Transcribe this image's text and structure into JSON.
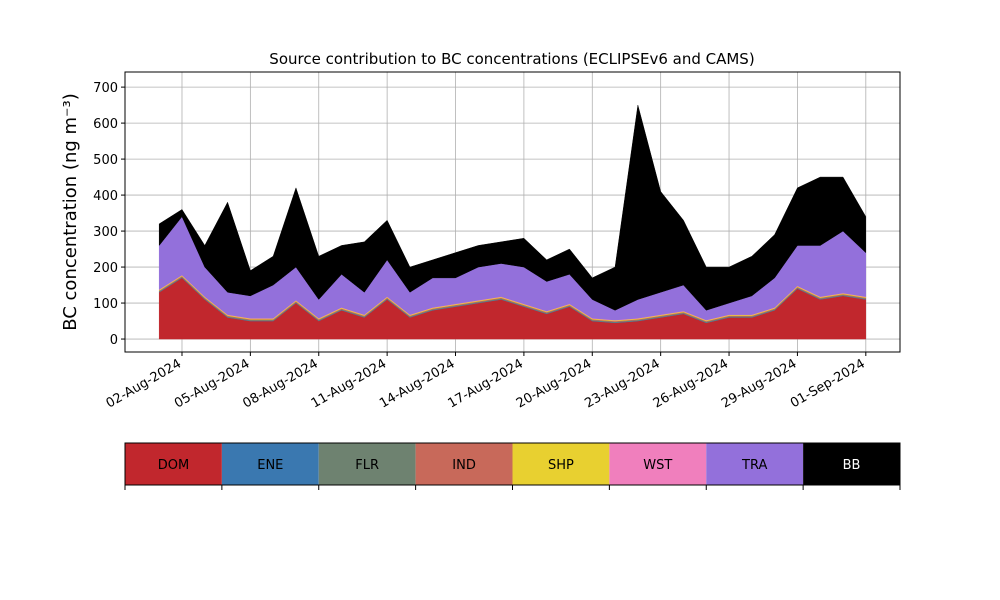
{
  "chart_data": {
    "type": "stacked_area",
    "title": "Source contribution to BC concentrations (ECLIPSEv6 and CAMS)",
    "y_label": "BC concentration (ng m⁻³)",
    "x": [
      "2024-08-01",
      "2024-08-02",
      "2024-08-03",
      "2024-08-04",
      "2024-08-05",
      "2024-08-06",
      "2024-08-07",
      "2024-08-08",
      "2024-08-09",
      "2024-08-10",
      "2024-08-11",
      "2024-08-12",
      "2024-08-13",
      "2024-08-14",
      "2024-08-15",
      "2024-08-16",
      "2024-08-17",
      "2024-08-18",
      "2024-08-19",
      "2024-08-20",
      "2024-08-21",
      "2024-08-22",
      "2024-08-23",
      "2024-08-24",
      "2024-08-25",
      "2024-08-26",
      "2024-08-27",
      "2024-08-28",
      "2024-08-29",
      "2024-08-30",
      "2024-08-31",
      "2024-09-01"
    ],
    "series": [
      {
        "name": "DOM",
        "color": "#c1272d",
        "values": [
          130,
          170,
          110,
          60,
          50,
          50,
          100,
          50,
          80,
          60,
          110,
          60,
          80,
          90,
          100,
          110,
          90,
          70,
          90,
          50,
          45,
          50,
          60,
          70,
          45,
          60,
          60,
          80,
          140,
          110,
          120,
          110
        ]
      },
      {
        "name": "ENE",
        "color": "#3a78b0",
        "values": [
          1,
          1,
          1,
          1,
          1,
          1,
          1,
          1,
          1,
          1,
          1,
          1,
          1,
          1,
          1,
          1,
          1,
          1,
          1,
          1,
          1,
          1,
          1,
          1,
          1,
          1,
          1,
          1,
          1,
          1,
          1,
          1
        ]
      },
      {
        "name": "FLR",
        "color": "#6e8270",
        "values": [
          2,
          2,
          2,
          2,
          2,
          2,
          2,
          2,
          2,
          2,
          2,
          2,
          2,
          2,
          2,
          2,
          2,
          2,
          2,
          2,
          2,
          2,
          2,
          2,
          2,
          2,
          2,
          2,
          2,
          2,
          2,
          2
        ]
      },
      {
        "name": "IND",
        "color": "#c8695a",
        "values": [
          2,
          2,
          2,
          2,
          2,
          2,
          2,
          2,
          2,
          2,
          2,
          2,
          2,
          2,
          2,
          2,
          2,
          2,
          2,
          2,
          2,
          2,
          2,
          2,
          2,
          2,
          2,
          2,
          2,
          2,
          2,
          2
        ]
      },
      {
        "name": "SHP",
        "color": "#e8d030",
        "values": [
          2,
          2,
          2,
          2,
          2,
          2,
          2,
          2,
          2,
          2,
          2,
          2,
          2,
          2,
          2,
          2,
          2,
          2,
          2,
          2,
          2,
          2,
          2,
          2,
          2,
          2,
          2,
          2,
          2,
          2,
          2,
          2
        ]
      },
      {
        "name": "WST",
        "color": "#f07fbd",
        "values": [
          1,
          1,
          1,
          1,
          1,
          1,
          1,
          1,
          1,
          1,
          1,
          1,
          1,
          1,
          1,
          1,
          1,
          1,
          1,
          1,
          1,
          1,
          1,
          1,
          1,
          1,
          1,
          1,
          1,
          1,
          1,
          1
        ]
      },
      {
        "name": "TRA",
        "color": "#9370db",
        "values": [
          122,
          162,
          82,
          62,
          62,
          92,
          92,
          52,
          92,
          62,
          102,
          62,
          82,
          72,
          92,
          92,
          102,
          82,
          82,
          52,
          27,
          52,
          62,
          72,
          27,
          32,
          52,
          82,
          112,
          142,
          172,
          122
        ]
      },
      {
        "name": "BB",
        "color": "#000000",
        "values": [
          60,
          20,
          60,
          250,
          70,
          80,
          220,
          120,
          80,
          140,
          110,
          70,
          50,
          70,
          60,
          60,
          80,
          60,
          70,
          60,
          120,
          540,
          280,
          180,
          120,
          100,
          110,
          120,
          160,
          190,
          150,
          100
        ]
      }
    ],
    "xlim": [
      "2024-07-30T12:00",
      "2024-09-02T12:00"
    ],
    "xticks": [
      {
        "value": "2024-08-02",
        "label": "02-Aug-2024"
      },
      {
        "value": "2024-08-05",
        "label": "05-Aug-2024"
      },
      {
        "value": "2024-08-08",
        "label": "08-Aug-2024"
      },
      {
        "value": "2024-08-11",
        "label": "11-Aug-2024"
      },
      {
        "value": "2024-08-14",
        "label": "14-Aug-2024"
      },
      {
        "value": "2024-08-17",
        "label": "17-Aug-2024"
      },
      {
        "value": "2024-08-20",
        "label": "20-Aug-2024"
      },
      {
        "value": "2024-08-23",
        "label": "23-Aug-2024"
      },
      {
        "value": "2024-08-26",
        "label": "26-Aug-2024"
      },
      {
        "value": "2024-08-29",
        "label": "29-Aug-2024"
      },
      {
        "value": "2024-09-01",
        "label": "01-Sep-2024"
      }
    ],
    "ylim": [
      -36,
      742
    ],
    "yticks": [
      0,
      100,
      200,
      300,
      400,
      500,
      600,
      700
    ],
    "grid": true
  }
}
